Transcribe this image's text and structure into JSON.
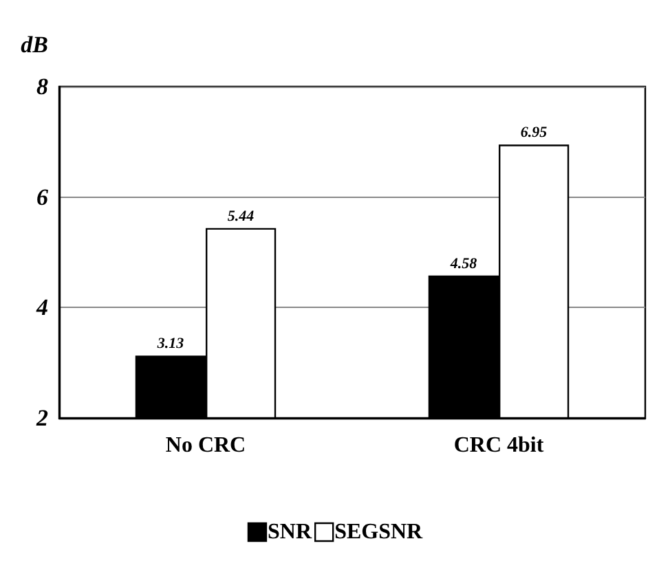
{
  "chart_data": {
    "type": "bar",
    "ylabel": "dB",
    "categories": [
      "No CRC",
      "CRC 4bit"
    ],
    "series": [
      {
        "name": "SNR",
        "color": "#000000",
        "values": [
          3.13,
          4.58
        ]
      },
      {
        "name": "SEGSNR",
        "color": "#ffffff",
        "values": [
          5.44,
          6.95
        ]
      }
    ],
    "ylim": [
      2,
      8
    ],
    "yticks": [
      2,
      4,
      6,
      8
    ],
    "grid": "y",
    "legend": "bottom",
    "data_labels": true
  }
}
